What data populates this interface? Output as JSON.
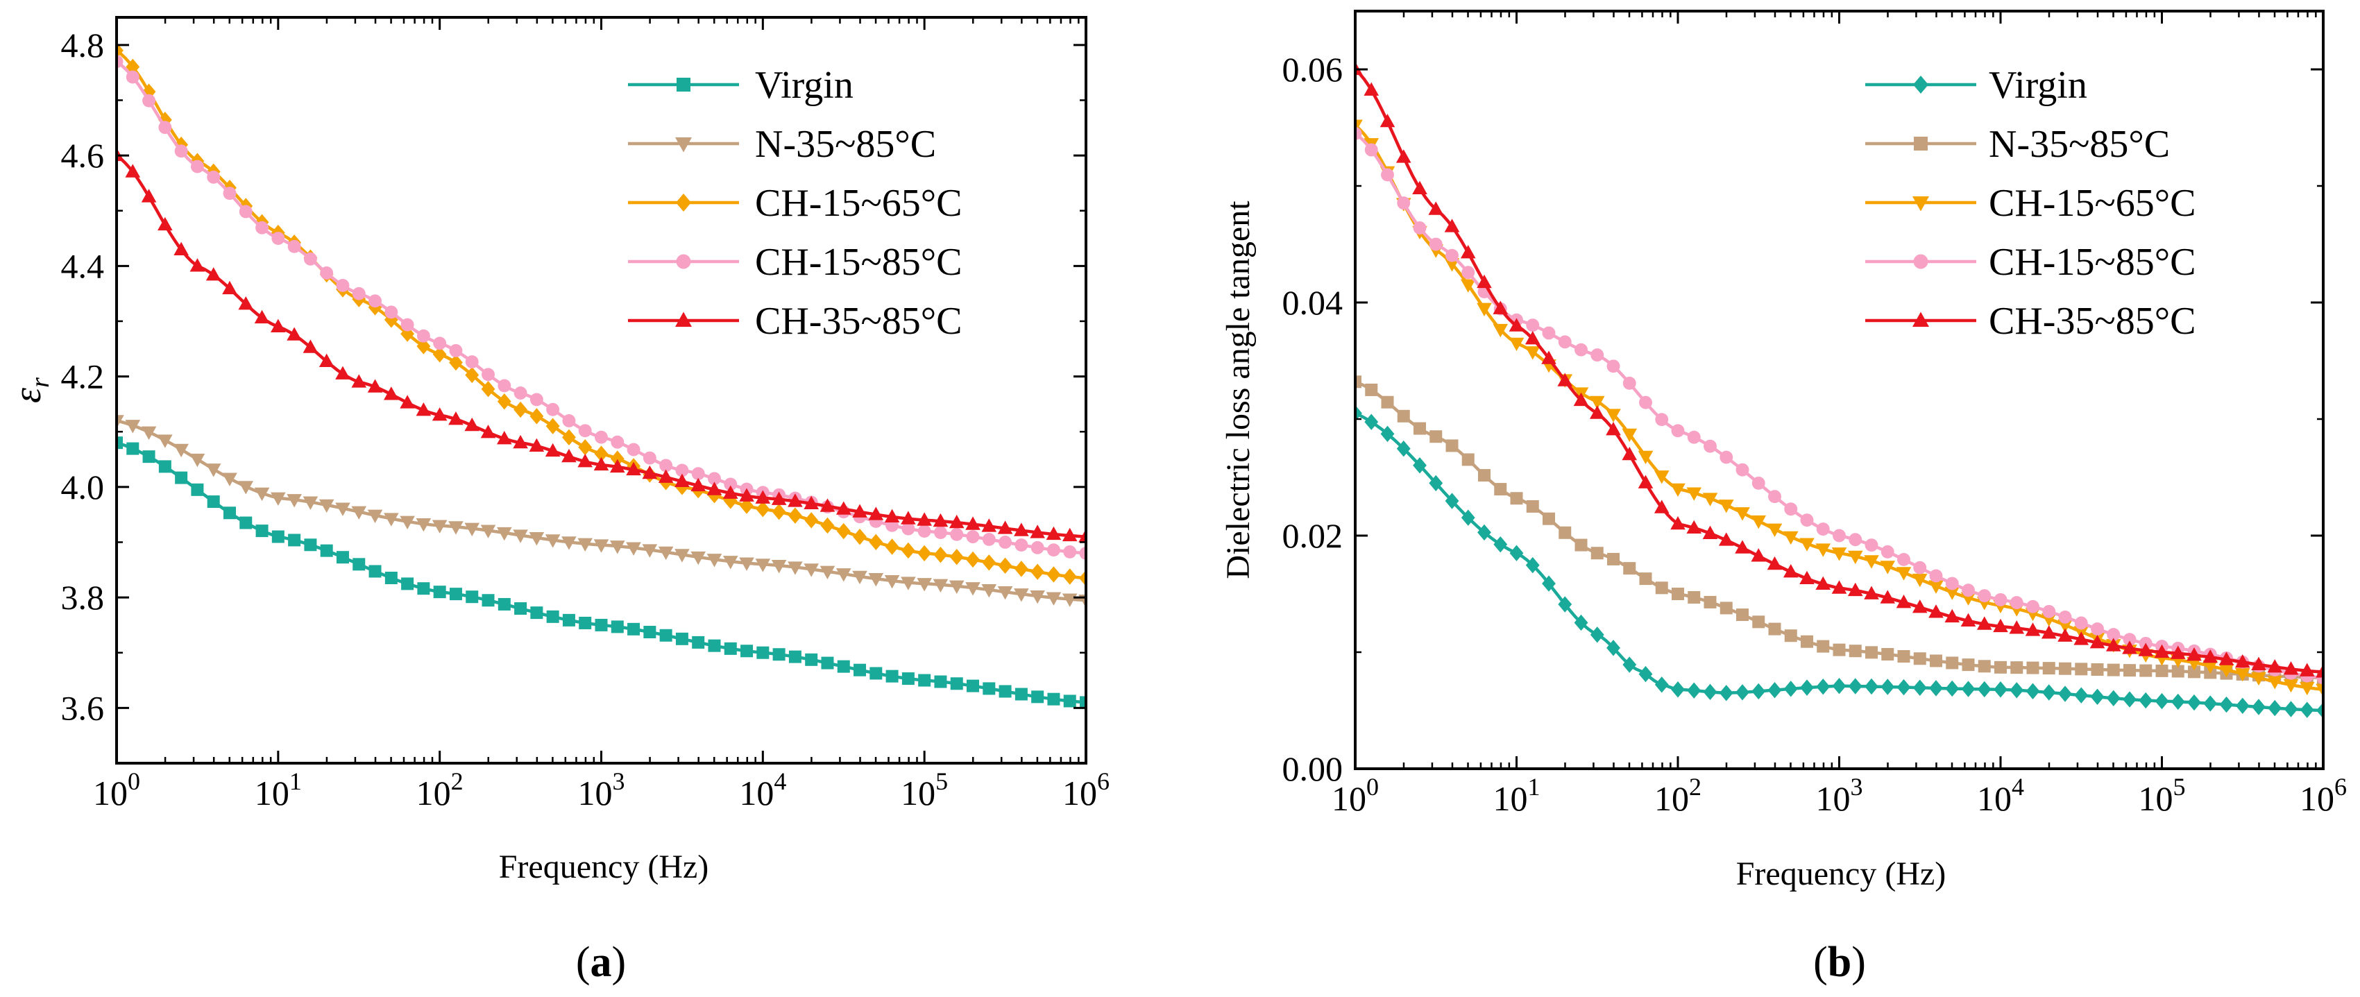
{
  "chart_data": [
    {
      "type": "line",
      "panel_label": "a",
      "xscale": "log",
      "xlim": [
        1,
        1000000
      ],
      "ylim": [
        3.5,
        4.85
      ],
      "xlabel": "Frequency (Hz)",
      "ylabel": "εr",
      "y_ticks": [
        "3.6",
        "3.8",
        "4.0",
        "4.2",
        "4.4",
        "4.6",
        "4.8"
      ],
      "y_tick_values": [
        3.6,
        3.8,
        4.0,
        4.2,
        4.4,
        4.6,
        4.8
      ],
      "x_ticks": [
        "10^0",
        "10^1",
        "10^2",
        "10^3",
        "10^4",
        "10^5",
        "10^6"
      ],
      "x_tick_values": [
        1,
        10,
        100,
        1000,
        10000,
        100000,
        1000000
      ],
      "legend_position": "top-right",
      "series": [
        {
          "name": "Virgin",
          "color": "#1aaa9a",
          "marker": "square",
          "x": [
            1,
            10,
            100,
            1000,
            10000,
            100000,
            1000000
          ],
          "y": [
            4.08,
            3.91,
            3.81,
            3.75,
            3.7,
            3.65,
            3.61
          ]
        },
        {
          "name": "N-35~85°C",
          "color": "#c4a07c",
          "marker": "triangle-down",
          "x": [
            1,
            10,
            100,
            1000,
            10000,
            100000,
            1000000
          ],
          "y": [
            4.12,
            3.98,
            3.93,
            3.895,
            3.86,
            3.825,
            3.795
          ]
        },
        {
          "name": "CH-15~65°C",
          "color": "#f5a300",
          "marker": "diamond",
          "x": [
            1,
            3.16,
            10,
            31.6,
            100,
            316,
            1000,
            3162,
            10000,
            100000,
            1000000
          ],
          "y": [
            4.79,
            4.59,
            4.46,
            4.34,
            4.24,
            4.14,
            4.06,
            4.0,
            3.96,
            3.88,
            3.835
          ]
        },
        {
          "name": "CH-15~85°C",
          "color": "#f7a1c4",
          "marker": "circle",
          "x": [
            1,
            3.16,
            10,
            31.6,
            100,
            316,
            1000,
            3162,
            10000,
            100000,
            1000000
          ],
          "y": [
            4.77,
            4.58,
            4.45,
            4.35,
            4.26,
            4.17,
            4.09,
            4.03,
            3.99,
            3.92,
            3.88
          ]
        },
        {
          "name": "CH-35~85°C",
          "color": "#e8141e",
          "marker": "triangle-up",
          "x": [
            1,
            3.16,
            10,
            31.6,
            100,
            316,
            1000,
            10000,
            100000,
            1000000
          ],
          "y": [
            4.6,
            4.4,
            4.29,
            4.19,
            4.13,
            4.08,
            4.04,
            3.98,
            3.94,
            3.91
          ]
        }
      ]
    },
    {
      "type": "line",
      "panel_label": "b",
      "xscale": "log",
      "xlim": [
        1,
        1000000
      ],
      "ylim": [
        0,
        0.065
      ],
      "xlabel": "Frequency (Hz)",
      "ylabel": "Dielectric loss angle tangent",
      "y_ticks": [
        "0.00",
        "0.02",
        "0.04",
        "0.06"
      ],
      "y_tick_values": [
        0,
        0.02,
        0.04,
        0.06
      ],
      "x_ticks": [
        "10^0",
        "10^1",
        "10^2",
        "10^3",
        "10^4",
        "10^5",
        "10^6"
      ],
      "x_tick_values": [
        1,
        10,
        100,
        1000,
        10000,
        100000,
        1000000
      ],
      "legend_position": "top-right",
      "series": [
        {
          "name": "Virgin",
          "color": "#1aaa9a",
          "marker": "diamond",
          "x": [
            1,
            10,
            31.6,
            56,
            80,
            100,
            200,
            1000,
            10000,
            100000,
            1000000
          ],
          "y": [
            0.0305,
            0.0185,
            0.0115,
            0.0085,
            0.0072,
            0.0068,
            0.0065,
            0.0071,
            0.0068,
            0.0058,
            0.005
          ]
        },
        {
          "name": "N-35~85°C",
          "color": "#c4a07c",
          "marker": "square",
          "x": [
            1,
            3.16,
            10,
            31.6,
            100,
            1000,
            10000,
            100000,
            1000000
          ],
          "y": [
            0.0332,
            0.0285,
            0.0232,
            0.0185,
            0.015,
            0.0102,
            0.0087,
            0.0084,
            0.0078
          ]
        },
        {
          "name": "CH-15~65°C",
          "color": "#f5a300",
          "marker": "triangle-down",
          "x": [
            1,
            3.16,
            10,
            31.6,
            100,
            1000,
            10000,
            100000,
            1000000
          ],
          "y": [
            0.0552,
            0.0445,
            0.0365,
            0.0315,
            0.024,
            0.0185,
            0.014,
            0.0095,
            0.0068
          ]
        },
        {
          "name": "CH-15~85°C",
          "color": "#f7a1c4",
          "marker": "circle",
          "x": [
            1,
            3.16,
            10,
            31.6,
            100,
            1000,
            10000,
            100000,
            1000000
          ],
          "y": [
            0.0545,
            0.045,
            0.0385,
            0.0355,
            0.029,
            0.02,
            0.0145,
            0.0105,
            0.0078
          ]
        },
        {
          "name": "CH-35~85°C",
          "color": "#e8141e",
          "marker": "triangle-up",
          "x": [
            1,
            3.16,
            10,
            31.6,
            100,
            1000,
            10000,
            100000,
            1000000
          ],
          "y": [
            0.06,
            0.048,
            0.038,
            0.0305,
            0.021,
            0.0155,
            0.0122,
            0.01,
            0.0083
          ]
        }
      ]
    }
  ]
}
